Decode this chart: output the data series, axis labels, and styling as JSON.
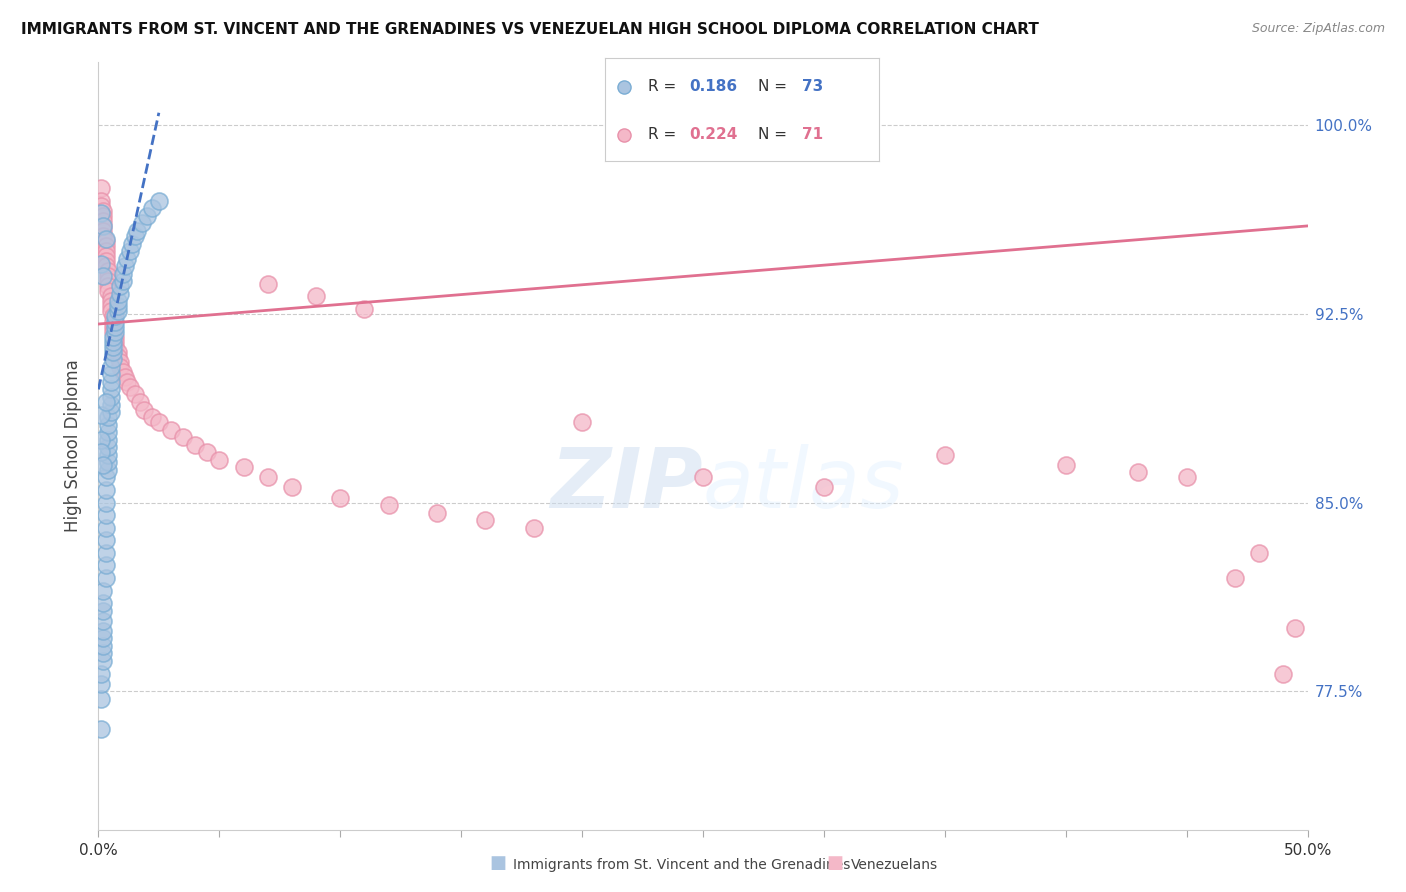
{
  "title": "IMMIGRANTS FROM ST. VINCENT AND THE GRENADINES VS VENEZUELAN HIGH SCHOOL DIPLOMA CORRELATION CHART",
  "source": "Source: ZipAtlas.com",
  "ylabel": "High School Diploma",
  "yticks": [
    0.775,
    0.85,
    0.925,
    1.0
  ],
  "ytick_labels": [
    "77.5%",
    "85.0%",
    "92.5%",
    "100.0%"
  ],
  "xmin": 0.0,
  "xmax": 0.5,
  "ymin": 0.72,
  "ymax": 1.025,
  "legend_blue_R": "0.186",
  "legend_blue_N": "73",
  "legend_pink_R": "0.224",
  "legend_pink_N": "71",
  "watermark": "ZIPatlas",
  "blue_color": "#aac4e0",
  "blue_edge_color": "#7aadd4",
  "blue_line_color": "#4472c4",
  "pink_color": "#f4b8c8",
  "pink_edge_color": "#e891aa",
  "pink_line_color": "#e07090",
  "blue_line_x0": 0.0,
  "blue_line_x1": 0.025,
  "blue_line_y0": 0.895,
  "blue_line_y1": 1.005,
  "pink_line_x0": 0.0,
  "pink_line_x1": 0.5,
  "pink_line_y0": 0.921,
  "pink_line_y1": 0.96,
  "blue_scatter_x": [
    0.001,
    0.001,
    0.001,
    0.001,
    0.002,
    0.002,
    0.002,
    0.002,
    0.002,
    0.002,
    0.002,
    0.002,
    0.002,
    0.003,
    0.003,
    0.003,
    0.003,
    0.003,
    0.003,
    0.003,
    0.003,
    0.003,
    0.004,
    0.004,
    0.004,
    0.004,
    0.004,
    0.004,
    0.004,
    0.004,
    0.005,
    0.005,
    0.005,
    0.005,
    0.005,
    0.005,
    0.005,
    0.006,
    0.006,
    0.006,
    0.006,
    0.006,
    0.007,
    0.007,
    0.007,
    0.007,
    0.008,
    0.008,
    0.008,
    0.009,
    0.009,
    0.01,
    0.01,
    0.011,
    0.012,
    0.013,
    0.014,
    0.015,
    0.016,
    0.018,
    0.02,
    0.022,
    0.025,
    0.001,
    0.002,
    0.003,
    0.001,
    0.002,
    0.001,
    0.001,
    0.003,
    0.001,
    0.002
  ],
  "blue_scatter_y": [
    0.76,
    0.772,
    0.778,
    0.782,
    0.787,
    0.79,
    0.793,
    0.796,
    0.799,
    0.803,
    0.807,
    0.81,
    0.815,
    0.82,
    0.825,
    0.83,
    0.835,
    0.84,
    0.845,
    0.85,
    0.855,
    0.86,
    0.863,
    0.866,
    0.869,
    0.872,
    0.875,
    0.878,
    0.881,
    0.884,
    0.886,
    0.889,
    0.892,
    0.895,
    0.898,
    0.901,
    0.904,
    0.907,
    0.91,
    0.912,
    0.914,
    0.916,
    0.918,
    0.92,
    0.922,
    0.924,
    0.926,
    0.928,
    0.93,
    0.933,
    0.936,
    0.938,
    0.941,
    0.944,
    0.947,
    0.95,
    0.953,
    0.956,
    0.958,
    0.961,
    0.964,
    0.967,
    0.97,
    0.965,
    0.96,
    0.955,
    0.945,
    0.94,
    0.875,
    0.885,
    0.89,
    0.87,
    0.865
  ],
  "pink_scatter_x": [
    0.001,
    0.001,
    0.001,
    0.002,
    0.002,
    0.002,
    0.002,
    0.002,
    0.002,
    0.003,
    0.003,
    0.003,
    0.003,
    0.003,
    0.003,
    0.004,
    0.004,
    0.004,
    0.004,
    0.004,
    0.005,
    0.005,
    0.005,
    0.005,
    0.006,
    0.006,
    0.006,
    0.006,
    0.007,
    0.007,
    0.007,
    0.008,
    0.008,
    0.009,
    0.009,
    0.01,
    0.011,
    0.012,
    0.013,
    0.015,
    0.017,
    0.019,
    0.022,
    0.025,
    0.03,
    0.035,
    0.04,
    0.045,
    0.05,
    0.06,
    0.07,
    0.08,
    0.1,
    0.12,
    0.14,
    0.16,
    0.18,
    0.2,
    0.25,
    0.3,
    0.35,
    0.4,
    0.43,
    0.45,
    0.47,
    0.48,
    0.49,
    0.495,
    0.07,
    0.09,
    0.11
  ],
  "pink_scatter_y": [
    0.975,
    0.97,
    0.968,
    0.966,
    0.964,
    0.962,
    0.96,
    0.958,
    0.956,
    0.954,
    0.952,
    0.95,
    0.948,
    0.946,
    0.944,
    0.942,
    0.94,
    0.938,
    0.936,
    0.934,
    0.932,
    0.93,
    0.928,
    0.926,
    0.924,
    0.922,
    0.92,
    0.918,
    0.916,
    0.914,
    0.912,
    0.91,
    0.908,
    0.906,
    0.904,
    0.902,
    0.9,
    0.898,
    0.896,
    0.893,
    0.89,
    0.887,
    0.884,
    0.882,
    0.879,
    0.876,
    0.873,
    0.87,
    0.867,
    0.864,
    0.86,
    0.856,
    0.852,
    0.849,
    0.846,
    0.843,
    0.84,
    0.882,
    0.86,
    0.856,
    0.869,
    0.865,
    0.862,
    0.86,
    0.82,
    0.83,
    0.782,
    0.8,
    0.937,
    0.932,
    0.927
  ]
}
